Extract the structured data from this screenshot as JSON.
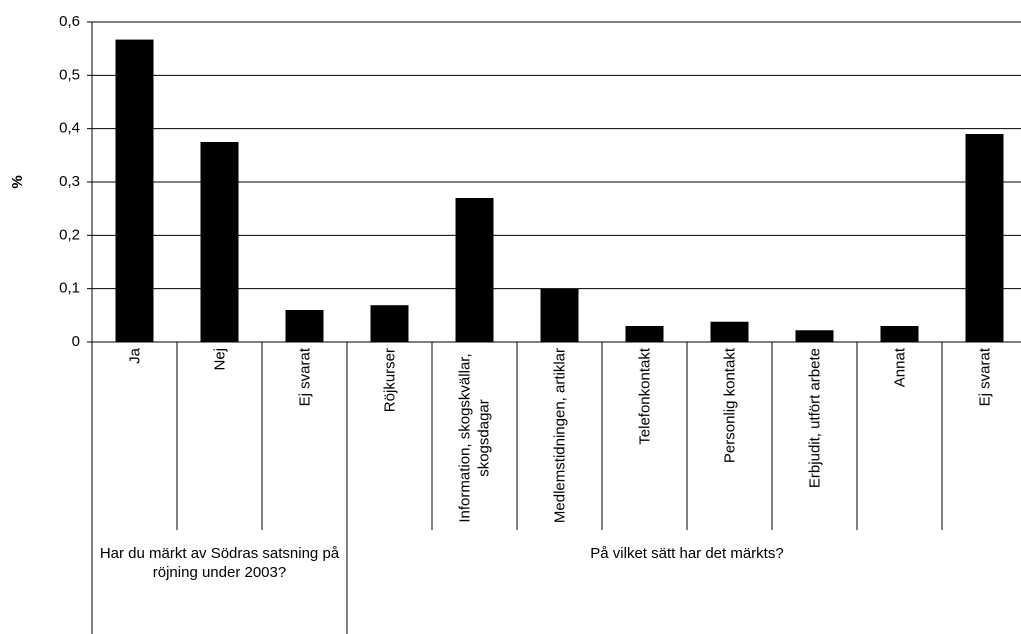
{
  "chart_data": {
    "type": "bar",
    "y_label": "%",
    "color": "#000000",
    "ylim": [
      0,
      0.6
    ],
    "yticks": [
      0,
      {
        "value": 0.1,
        "label": "0,1"
      },
      {
        "value": 0.2,
        "label": "0,2"
      },
      {
        "value": 0.3,
        "label": "0,3"
      },
      {
        "value": 0.4,
        "label": "0,4"
      },
      {
        "value": 0.5,
        "label": "0,5"
      },
      {
        "value": 0.6,
        "label": "0,6"
      }
    ],
    "grid": true,
    "groups": [
      {
        "label": "Har du märkt av Södras satsning på röjning under 2003?",
        "categories": [
          "Ja",
          "Nej",
          "Ej svarat"
        ],
        "values": [
          0.567,
          0.375,
          0.06
        ]
      },
      {
        "label": "På vilket sätt har det märkts?",
        "categories": [
          "Röjkurser",
          "Information, skogskvällar, skogsdagar",
          "Medlemstidningen, artiklar",
          "Telefonkontakt",
          "Personlig kontakt",
          "Erbjudit, utfört arbete",
          "Annat",
          "Ej svarat"
        ],
        "values": [
          0.069,
          0.27,
          0.1,
          0.03,
          0.038,
          0.022,
          0.03,
          0.39
        ]
      }
    ]
  }
}
